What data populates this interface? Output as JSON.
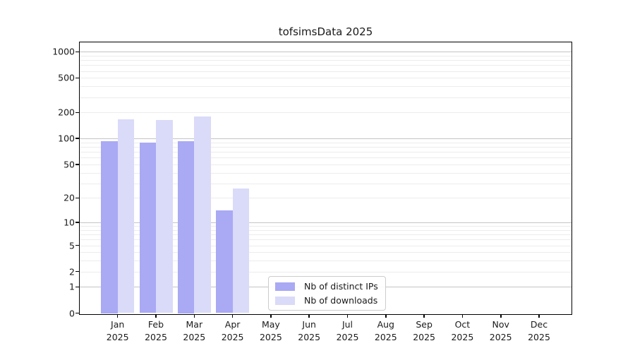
{
  "chart_data": {
    "type": "bar",
    "title": "tofsimsData 2025",
    "categories": [
      "Jan",
      "Feb",
      "Mar",
      "Apr",
      "May",
      "Jun",
      "Jul",
      "Aug",
      "Sep",
      "Oct",
      "Nov",
      "Dec"
    ],
    "x_tick_year": "2025",
    "series": [
      {
        "name": "Nb of distinct IPs",
        "color": "#a9a9f4",
        "values": [
          93,
          90,
          93,
          14,
          0,
          0,
          0,
          0,
          0,
          0,
          0,
          0
        ]
      },
      {
        "name": "Nb of downloads",
        "color": "#dadaf9",
        "values": [
          167,
          164,
          181,
          26,
          0,
          0,
          0,
          0,
          0,
          0,
          0,
          0
        ]
      }
    ],
    "y_axis": {
      "ticks": [
        0,
        1,
        2,
        5,
        10,
        20,
        50,
        100,
        200,
        500,
        1000
      ],
      "range": [
        0,
        1000
      ],
      "scale": "log10(value+1)",
      "major_gridlines": [
        1,
        10,
        100,
        1000
      ]
    },
    "grid": true,
    "legend": {
      "position": "inside-bottom-center"
    },
    "colors": {
      "major_grid": "#c4c4c4",
      "minor_grid": "#ececec",
      "spine": "#000000",
      "text": "#1a1a1a",
      "background": "#ffffff"
    }
  }
}
